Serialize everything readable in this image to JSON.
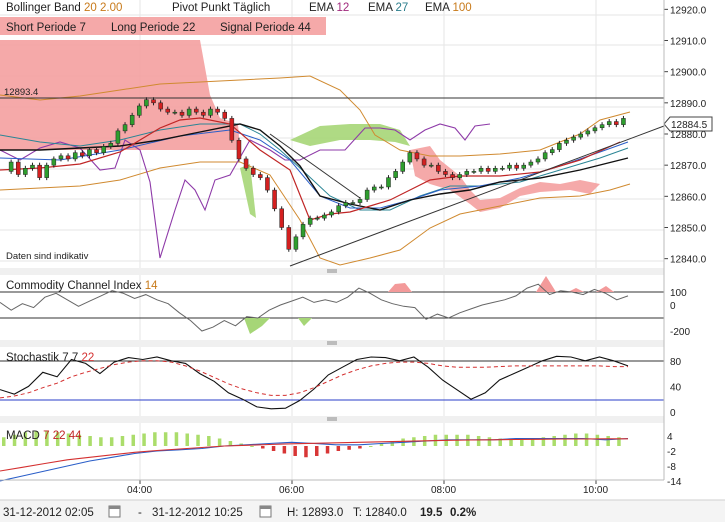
{
  "legend": {
    "row1": [
      {
        "name": "Bollinger Band",
        "params": [
          "20",
          "2.00"
        ],
        "param_color": "#c87a1a"
      },
      {
        "name": "Pivot Punkt",
        "params": [
          "Täglich"
        ],
        "param_color": "#222222"
      },
      {
        "name": "EMA",
        "params": [
          "12"
        ],
        "param_color": "#a0287c"
      },
      {
        "name": "EMA",
        "params": [
          "27"
        ],
        "param_color": "#2a7d8c"
      },
      {
        "name": "EMA",
        "params": [
          "100"
        ],
        "param_color": "#c87a1a"
      }
    ],
    "row2": [
      {
        "name": "Short Periode",
        "params": [
          "7"
        ]
      },
      {
        "name": "Long Periode",
        "params": [
          "22"
        ]
      },
      {
        "name": "Signal Periode",
        "params": [
          "44"
        ]
      }
    ]
  },
  "notes": {
    "indicative": "Daten sind indikativ"
  },
  "colors": {
    "up_candle": "#2e9e2e",
    "down_candle": "#d42020",
    "cloud_red": "#f08080",
    "cloud_green": "#9bd36a",
    "bollinger": "#c87a1a",
    "ema12": "#8b2a9c",
    "ema27": "#2a7d8c",
    "signal_blue": "#2a5ec8"
  },
  "chart_data": [
    {
      "type": "line",
      "title": "",
      "price_axis": {
        "ticks": [
          "12920.0",
          "12910.0",
          "12900.0",
          "12890.0",
          "12880.0",
          "12870.0",
          "12860.0",
          "12850.0",
          "12840.0"
        ],
        "ylim": [
          12837,
          12923
        ]
      },
      "pivot_label": "12893.4",
      "pivot_value": 12893.4,
      "last_price_label": "12884.5",
      "last_price": 12884.5,
      "x_labels": [
        "04:00",
        "06:00",
        "08:00",
        "10:00"
      ],
      "series": [
        {
          "name": "Price",
          "values": [
            12868,
            12871,
            12867,
            12869,
            12870,
            12866,
            12870,
            12872,
            12873,
            12872,
            12874,
            12873,
            12875,
            12874,
            12876,
            12877,
            12881,
            12883,
            12886,
            12889,
            12891,
            12890,
            12888,
            12887,
            12887,
            12886,
            12888,
            12887,
            12886,
            12888,
            12887,
            12885,
            12878,
            12872,
            12869,
            12867,
            12866,
            12862,
            12856,
            12850,
            12843,
            12847,
            12851,
            12853,
            12853,
            12854,
            12855,
            12857,
            12858,
            12858,
            12859,
            12862,
            12863,
            12863,
            12866,
            12868,
            12871,
            12874,
            12872,
            12870,
            12870,
            12868,
            12867,
            12866,
            12867,
            12868,
            12868,
            12869,
            12868,
            12869,
            12869,
            12870,
            12869,
            12870,
            12871,
            12872,
            12874,
            12875,
            12877,
            12878,
            12879,
            12880,
            12881,
            12882,
            12883,
            12884,
            12883,
            12885
          ]
        }
      ]
    },
    {
      "type": "line",
      "title": "Commodity Channel Index",
      "params": [
        "14"
      ],
      "y_ticks": [
        "100",
        "0",
        "-200"
      ],
      "series": [
        {
          "name": "CCI",
          "values": [
            20,
            -40,
            10,
            -20,
            60,
            90,
            40,
            -10,
            30,
            70,
            110,
            90,
            50,
            80,
            40,
            10,
            -60,
            -120,
            -200,
            -170,
            -120,
            -160,
            -90,
            -100,
            -40,
            0,
            30,
            60,
            20,
            40,
            20,
            60,
            130,
            90,
            40,
            10,
            -10,
            -20,
            -110,
            -70,
            -100,
            -60,
            -30,
            0,
            20,
            40,
            70,
            130,
            160,
            80,
            110,
            100,
            80,
            120,
            90,
            40,
            70
          ]
        }
      ]
    },
    {
      "type": "line",
      "title": "Stochastik",
      "params": [
        "7",
        "7",
        "22"
      ],
      "y_ticks": [
        "80",
        "40",
        "0"
      ],
      "series": [
        {
          "name": "%K",
          "values": [
            35,
            28,
            40,
            62,
            55,
            82,
            76,
            60,
            78,
            85,
            82,
            86,
            80,
            76,
            60,
            48,
            30,
            20,
            8,
            5,
            6,
            18,
            36,
            58,
            70,
            82,
            86,
            85,
            80,
            86,
            70,
            50,
            35,
            20,
            30,
            50,
            60,
            70,
            80,
            87,
            86,
            80,
            86,
            80,
            72
          ]
        },
        {
          "name": "%D",
          "values": [
            22,
            25,
            30,
            38,
            45,
            55,
            62,
            68,
            74,
            78,
            80,
            80,
            78,
            72,
            64,
            54,
            44,
            36,
            30,
            26,
            26,
            30,
            38,
            48,
            58,
            66,
            72,
            76,
            78,
            78,
            76,
            72,
            70,
            70,
            70,
            71,
            72,
            72,
            72,
            72,
            72,
            72,
            72,
            71,
            71
          ]
        }
      ]
    },
    {
      "type": "bar",
      "title": "MACD",
      "params": [
        "7",
        "22",
        "44"
      ],
      "y_ticks": [
        "4",
        "-2",
        "-8",
        "-14"
      ],
      "histogram": [
        3.5,
        4.5,
        5.5,
        6,
        6,
        5.5,
        5,
        4.5,
        4,
        3.5,
        3.5,
        4,
        4.5,
        5,
        5.5,
        5.5,
        5.5,
        5,
        4.5,
        4,
        3,
        2,
        1,
        0,
        -1,
        -2,
        -3,
        -4,
        -4.5,
        -4,
        -3,
        -2,
        -1.5,
        -1,
        0,
        1,
        2,
        3,
        3.5,
        4,
        4.5,
        4.5,
        4.5,
        4.5,
        4,
        3.5,
        3,
        2.5,
        2.5,
        3,
        3.5,
        4,
        4.5,
        5,
        5,
        4.5,
        4,
        3.5
      ],
      "series": [
        {
          "name": "MACD",
          "values": [
            -14,
            -12,
            -10,
            -8,
            -6,
            -4.5,
            -3,
            -2,
            -1.5,
            -1,
            0,
            0.5,
            1,
            1.5,
            1,
            0.5,
            0.5,
            1,
            1.5,
            2,
            2.5,
            2.5,
            2.5,
            3,
            3,
            3,
            3,
            2.5,
            3
          ]
        },
        {
          "name": "Signal",
          "values": [
            -10,
            -8.5,
            -7,
            -5.5,
            -4.5,
            -3.5,
            -2.5,
            -1.8,
            -1.2,
            -0.6,
            0,
            0.3,
            0.6,
            0.9,
            1.1,
            1.3,
            1.5,
            1.7,
            1.9,
            2.1,
            2.3,
            2.4,
            2.5,
            2.6,
            2.7,
            2.8,
            2.8,
            2.9,
            2.9
          ]
        }
      ]
    }
  ],
  "status_bar": {
    "start": "31-12-2012 02:05",
    "dash": "-",
    "end": "31-12-2012 10:25",
    "high": "H: 12893.0",
    "low": "T: 12840.0",
    "change": "19.5",
    "change_pct": "0.2%",
    "change_color": "#3aa03a"
  }
}
